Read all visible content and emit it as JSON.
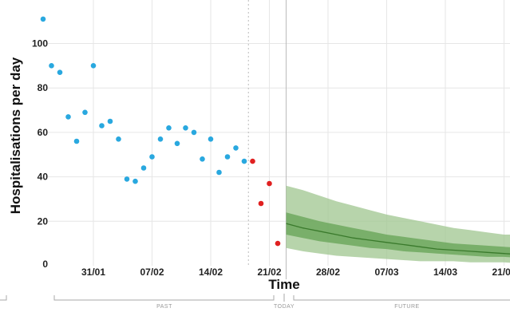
{
  "chart_data": {
    "type": "scatter",
    "title": "",
    "xlabel": "Time",
    "ylabel": "Hospitalisations per day",
    "x_type": "date",
    "ylim": [
      0,
      115
    ],
    "yticks": [
      0,
      20,
      40,
      60,
      80,
      100
    ],
    "xticks": [
      "2021-01-31",
      "2021-02-07",
      "2021-02-14",
      "2021-02-21",
      "2021-02-28",
      "2021-03-07",
      "2021-03-14",
      "2021-03-21"
    ],
    "xtick_labels": [
      "31/01",
      "07/02",
      "14/02",
      "21/02",
      "28/02",
      "07/03",
      "14/03",
      "21/03"
    ],
    "grid": true,
    "today": "2021-02-23",
    "period_labels": {
      "past": "PAST",
      "today": "TODAY",
      "future": "FUTURE"
    },
    "colors": {
      "observed": "#29a8df",
      "recent": "#e02020",
      "median": "#3a7a2c",
      "band_inner": "#6ea85e",
      "band_outer": "#9fc68f"
    },
    "series": [
      {
        "name": "",
        "role": "observed",
        "x": [
          "2021-01-25",
          "2021-01-26",
          "2021-01-27",
          "2021-01-28",
          "2021-01-29",
          "2021-01-30",
          "2021-01-31",
          "2021-02-01",
          "2021-02-02",
          "2021-02-03",
          "2021-02-04",
          "2021-02-05",
          "2021-02-06",
          "2021-02-07",
          "2021-02-08",
          "2021-02-09",
          "2021-02-10",
          "2021-02-11",
          "2021-02-12",
          "2021-02-13",
          "2021-02-14",
          "2021-02-15",
          "2021-02-16",
          "2021-02-17",
          "2021-02-18"
        ],
        "y": [
          111,
          90,
          87,
          67,
          56,
          69,
          90,
          63,
          65,
          57,
          39,
          38,
          44,
          49,
          57,
          62,
          55,
          62,
          60,
          48,
          57,
          42,
          49,
          53,
          47
        ]
      },
      {
        "name": "",
        "role": "recent",
        "x": [
          "2021-02-19",
          "2021-02-20",
          "2021-02-21",
          "2021-02-22"
        ],
        "y": [
          47,
          28,
          37,
          10
        ]
      },
      {
        "name": "",
        "role": "forecast",
        "x": [
          "2021-02-23",
          "2021-02-25",
          "2021-02-27",
          "2021-03-01",
          "2021-03-03",
          "2021-03-05",
          "2021-03-07",
          "2021-03-09",
          "2021-03-11",
          "2021-03-13",
          "2021-03-15",
          "2021-03-17",
          "2021-03-19",
          "2021-03-21",
          "2021-03-23"
        ],
        "median": [
          19,
          17,
          15.5,
          14,
          12.5,
          11.5,
          10.5,
          9.5,
          8.5,
          7.5,
          7,
          6.5,
          6,
          5.5,
          5
        ],
        "inner_low": [
          14,
          12.5,
          11,
          10,
          9,
          8,
          7.5,
          6.5,
          6,
          5.5,
          5,
          4.5,
          4,
          4,
          3.5
        ],
        "inner_high": [
          24,
          22,
          20,
          18.5,
          17,
          15.5,
          14,
          13,
          12,
          11,
          10,
          9.5,
          9,
          8.5,
          8
        ],
        "outer_low": [
          8,
          6.5,
          5.5,
          4.5,
          4,
          3.5,
          3,
          2.5,
          2,
          2,
          2,
          1.5,
          1.5,
          1.5,
          1
        ],
        "outer_high": [
          36,
          34,
          31.5,
          29,
          27,
          25,
          23,
          21.5,
          20,
          18.5,
          17,
          16,
          15,
          14,
          14
        ]
      }
    ]
  }
}
